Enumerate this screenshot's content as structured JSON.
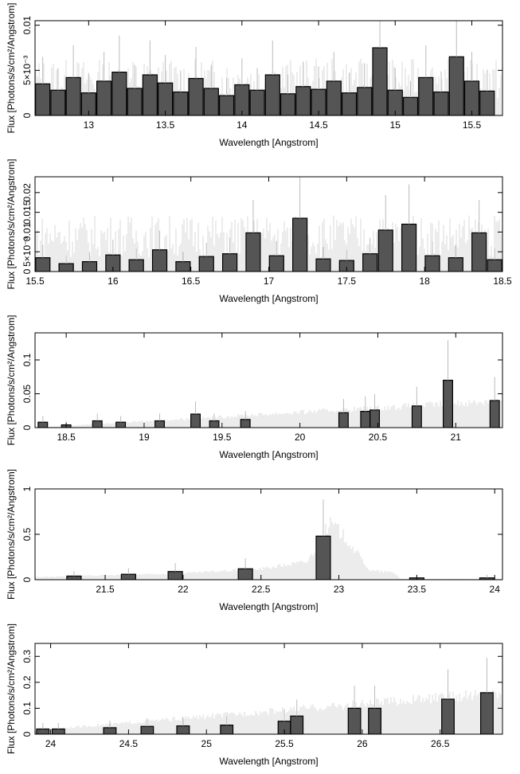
{
  "chart_data": [
    {
      "type": "bar",
      "xlabel": "Wavelength [Angstrom]",
      "ylabel": "Flux [Photons/s/cm²/Angstrom]",
      "xlim": [
        12.65,
        15.7
      ],
      "ylim": [
        0,
        0.0105
      ],
      "xticks": [
        13,
        13.5,
        14,
        14.5,
        15,
        15.5
      ],
      "xtick_labels": [
        "13",
        "13.5",
        "14",
        "14.5",
        "15",
        "15.5"
      ],
      "yticks": [
        0,
        0.005,
        0.01
      ],
      "ytick_labels": [
        "0",
        "5×10⁻³",
        "0.01"
      ],
      "grid": false,
      "series": [
        {
          "x": [
            12.7,
            12.8,
            12.9,
            13.0,
            13.1,
            13.2,
            13.3,
            13.4,
            13.5,
            13.6,
            13.7,
            13.8,
            13.9,
            14.0,
            14.1,
            14.2,
            14.3,
            14.4,
            14.5,
            14.6,
            14.7,
            14.8,
            14.9,
            15.0,
            15.1,
            15.2,
            15.3,
            15.4,
            15.5,
            15.6
          ],
          "values": [
            0.0035,
            0.0028,
            0.0042,
            0.0025,
            0.0038,
            0.0048,
            0.003,
            0.0045,
            0.0036,
            0.0026,
            0.0041,
            0.003,
            0.0022,
            0.0034,
            0.0028,
            0.0045,
            0.0024,
            0.0032,
            0.0029,
            0.0038,
            0.0025,
            0.0031,
            0.0075,
            0.0028,
            0.002,
            0.0042,
            0.0026,
            0.0065,
            0.0038,
            0.0027
          ]
        }
      ]
    },
    {
      "type": "bar",
      "xlabel": "Wavelength [Angstrom]",
      "ylabel": "Flux [Photons/s/cm²/Angstrom]",
      "xlim": [
        15.5,
        18.5
      ],
      "ylim": [
        0,
        0.024
      ],
      "xticks": [
        15.5,
        16,
        16.5,
        17,
        17.5,
        18,
        18.5
      ],
      "xtick_labels": [
        "15.5",
        "16",
        "16.5",
        "17",
        "17.5",
        "18",
        "18.5"
      ],
      "yticks": [
        0,
        0.005,
        0.01,
        0.015,
        0.02
      ],
      "ytick_labels": [
        "0",
        "5×10⁻³",
        "0.01",
        "0.015",
        "0.02"
      ],
      "grid": false,
      "series": [
        {
          "x": [
            15.55,
            15.7,
            15.85,
            16.0,
            16.15,
            16.3,
            16.45,
            16.6,
            16.75,
            16.9,
            17.05,
            17.2,
            17.35,
            17.5,
            17.65,
            17.75,
            17.9,
            18.05,
            18.2,
            18.35,
            18.45
          ],
          "values": [
            0.0035,
            0.002,
            0.0025,
            0.0042,
            0.003,
            0.0055,
            0.0025,
            0.0038,
            0.0045,
            0.0098,
            0.004,
            0.0135,
            0.0032,
            0.0028,
            0.0045,
            0.0105,
            0.012,
            0.004,
            0.0035,
            0.0098,
            0.003
          ]
        }
      ]
    },
    {
      "type": "bar",
      "xlabel": "Wavelength [Angstrom]",
      "ylabel": "Flux [Photons/s/cm²/Angstrom]",
      "xlim": [
        18.3,
        21.3
      ],
      "ylim": [
        0,
        0.14
      ],
      "xticks": [
        18.5,
        19,
        19.5,
        20,
        20.5,
        21
      ],
      "xtick_labels": [
        "18.5",
        "19",
        "19.5",
        "20",
        "20.5",
        "21"
      ],
      "yticks": [
        0,
        0.05,
        0.1
      ],
      "ytick_labels": [
        "0",
        "0.05",
        "0.1"
      ],
      "grid": false,
      "series": [
        {
          "x": [
            18.35,
            18.5,
            18.7,
            18.85,
            19.1,
            19.33,
            19.45,
            19.65,
            20.28,
            20.42,
            20.48,
            20.75,
            20.95,
            21.25
          ],
          "values": [
            0.008,
            0.004,
            0.01,
            0.008,
            0.01,
            0.02,
            0.01,
            0.012,
            0.022,
            0.024,
            0.026,
            0.032,
            0.07,
            0.04
          ]
        },
        {
          "x": [
            18.3,
            21.3
          ],
          "values": [
            0.0,
            0.04
          ]
        }
      ]
    },
    {
      "type": "bar",
      "xlabel": "Wavelength [Angstrom]",
      "ylabel": "Flux [Photons/s/cm²/Angstrom]",
      "xlim": [
        21.05,
        24.05
      ],
      "ylim": [
        0,
        1.0
      ],
      "xticks": [
        21.5,
        22,
        22.5,
        23,
        23.5,
        24
      ],
      "xtick_labels": [
        "21.5",
        "22",
        "22.5",
        "23",
        "23.5",
        "24"
      ],
      "yticks": [
        0,
        0.5,
        1
      ],
      "ytick_labels": [
        "0",
        "0.5",
        "1"
      ],
      "grid": false,
      "series": [
        {
          "x": [
            21.3,
            21.65,
            21.95,
            22.4,
            22.9,
            23.5,
            23.95
          ],
          "values": [
            0.04,
            0.06,
            0.09,
            0.12,
            0.48,
            0.02,
            0.02
          ]
        },
        {
          "x": [
            21.05,
            22.0,
            22.5,
            22.8,
            22.9,
            22.95,
            23.05,
            23.2,
            23.35,
            23.4,
            24.05
          ],
          "values": [
            0.03,
            0.07,
            0.12,
            0.2,
            0.5,
            0.62,
            0.45,
            0.1,
            0.08,
            0.01,
            0.01
          ]
        }
      ]
    },
    {
      "type": "bar",
      "xlabel": "Wavelength [Angstrom]",
      "ylabel": "Flux [Photons/s/cm²/Angstrom]",
      "xlim": [
        23.9,
        26.9
      ],
      "ylim": [
        0,
        0.35
      ],
      "xticks": [
        24,
        24.5,
        25,
        25.5,
        26,
        26.5
      ],
      "xtick_labels": [
        "24",
        "24.5",
        "25",
        "25.5",
        "26",
        "26.5"
      ],
      "yticks": [
        0,
        0.1,
        0.2,
        0.3
      ],
      "ytick_labels": [
        "0",
        "0.1",
        "0.2",
        "0.3"
      ],
      "grid": false,
      "series": [
        {
          "x": [
            23.95,
            24.05,
            24.38,
            24.62,
            24.85,
            25.13,
            25.5,
            25.58,
            25.95,
            26.08,
            26.55,
            26.8
          ],
          "values": [
            0.02,
            0.02,
            0.025,
            0.03,
            0.032,
            0.035,
            0.05,
            0.07,
            0.1,
            0.1,
            0.135,
            0.16
          ]
        },
        {
          "x": [
            23.9,
            26.9
          ],
          "values": [
            0.015,
            0.16
          ]
        }
      ]
    }
  ]
}
